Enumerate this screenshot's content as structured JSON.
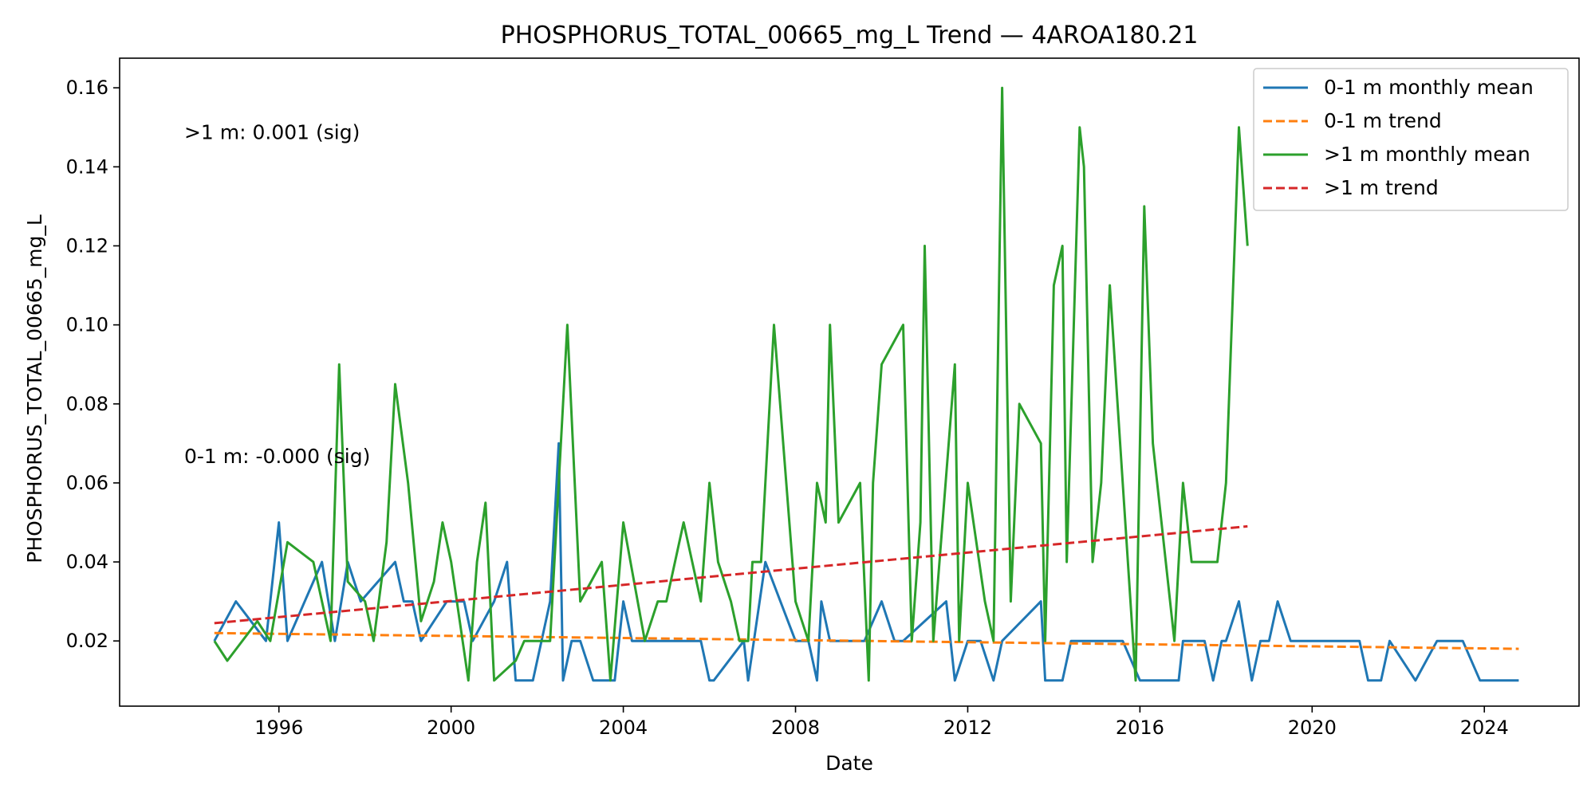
{
  "chart_data": {
    "type": "line",
    "title": "PHOSPHORUS_TOTAL_00665_mg_L Trend — 4AROA180.21",
    "xlabel": "Date",
    "ylabel": "PHOSPHORUS_TOTAL_00665_mg_L",
    "xlim": [
      1992.3,
      2026.2
    ],
    "ylim": [
      0.0035,
      0.1675
    ],
    "x_ticks": [
      1996,
      2000,
      2004,
      2008,
      2012,
      2016,
      2020,
      2024
    ],
    "y_ticks": [
      0.02,
      0.04,
      0.06,
      0.08,
      0.1,
      0.12,
      0.14,
      0.16
    ],
    "y_tick_labels": [
      "0.02",
      "0.04",
      "0.06",
      "0.08",
      "0.10",
      "0.12",
      "0.14",
      "0.16"
    ],
    "grid": false,
    "legend_position": "top-right",
    "annotations": [
      {
        "text": ">1 m: 0.001 (sig)",
        "x": 1993.8,
        "y": 0.147
      },
      {
        "text": "0-1 m: -0.000 (sig)",
        "x": 1993.8,
        "y": 0.065
      }
    ],
    "series": [
      {
        "name": "0-1 m monthly mean",
        "color": "#1f77b4",
        "style": "solid",
        "points": [
          [
            1994.5,
            0.02
          ],
          [
            1995.0,
            0.03
          ],
          [
            1995.7,
            0.02
          ],
          [
            1996.0,
            0.05
          ],
          [
            1996.2,
            0.02
          ],
          [
            1997.0,
            0.04
          ],
          [
            1997.3,
            0.02
          ],
          [
            1997.6,
            0.04
          ],
          [
            1997.9,
            0.03
          ],
          [
            1998.7,
            0.04
          ],
          [
            1998.9,
            0.03
          ],
          [
            1999.1,
            0.03
          ],
          [
            1999.3,
            0.02
          ],
          [
            1999.9,
            0.03
          ],
          [
            2000.3,
            0.03
          ],
          [
            2000.5,
            0.02
          ],
          [
            2001.0,
            0.03
          ],
          [
            2001.3,
            0.04
          ],
          [
            2001.5,
            0.01
          ],
          [
            2001.9,
            0.01
          ],
          [
            2002.3,
            0.03
          ],
          [
            2002.5,
            0.07
          ],
          [
            2002.6,
            0.01
          ],
          [
            2002.8,
            0.02
          ],
          [
            2003.0,
            0.02
          ],
          [
            2003.3,
            0.01
          ],
          [
            2003.8,
            0.01
          ],
          [
            2004.0,
            0.03
          ],
          [
            2004.2,
            0.02
          ],
          [
            2005.0,
            0.02
          ],
          [
            2005.2,
            0.02
          ],
          [
            2005.5,
            0.02
          ],
          [
            2005.8,
            0.02
          ],
          [
            2006.0,
            0.01
          ],
          [
            2006.1,
            0.01
          ],
          [
            2006.8,
            0.02
          ],
          [
            2006.9,
            0.01
          ],
          [
            2007.3,
            0.04
          ],
          [
            2008.0,
            0.02
          ],
          [
            2008.3,
            0.02
          ],
          [
            2008.5,
            0.01
          ],
          [
            2008.6,
            0.03
          ],
          [
            2008.8,
            0.02
          ],
          [
            2009.0,
            0.02
          ],
          [
            2009.6,
            0.02
          ],
          [
            2010.0,
            0.03
          ],
          [
            2010.3,
            0.02
          ],
          [
            2010.5,
            0.02
          ],
          [
            2011.5,
            0.03
          ],
          [
            2011.7,
            0.01
          ],
          [
            2012.0,
            0.02
          ],
          [
            2012.3,
            0.02
          ],
          [
            2012.6,
            0.01
          ],
          [
            2012.8,
            0.02
          ],
          [
            2013.7,
            0.03
          ],
          [
            2013.8,
            0.01
          ],
          [
            2014.2,
            0.01
          ],
          [
            2014.4,
            0.02
          ],
          [
            2014.8,
            0.02
          ],
          [
            2015.0,
            0.02
          ],
          [
            2015.4,
            0.02
          ],
          [
            2015.6,
            0.02
          ],
          [
            2016.0,
            0.01
          ],
          [
            2016.3,
            0.01
          ],
          [
            2016.9,
            0.01
          ],
          [
            2017.0,
            0.02
          ],
          [
            2017.5,
            0.02
          ],
          [
            2017.7,
            0.01
          ],
          [
            2017.9,
            0.02
          ],
          [
            2018.0,
            0.02
          ],
          [
            2018.3,
            0.03
          ],
          [
            2018.6,
            0.01
          ],
          [
            2018.8,
            0.02
          ],
          [
            2019.0,
            0.02
          ],
          [
            2019.2,
            0.03
          ],
          [
            2019.5,
            0.02
          ],
          [
            2019.8,
            0.02
          ],
          [
            2020.1,
            0.02
          ],
          [
            2020.3,
            0.02
          ],
          [
            2020.6,
            0.02
          ],
          [
            2021.1,
            0.02
          ],
          [
            2021.3,
            0.01
          ],
          [
            2021.6,
            0.01
          ],
          [
            2021.8,
            0.02
          ],
          [
            2022.4,
            0.01
          ],
          [
            2022.9,
            0.02
          ],
          [
            2023.5,
            0.02
          ],
          [
            2023.9,
            0.01
          ],
          [
            2024.4,
            0.01
          ],
          [
            2024.8,
            0.01
          ]
        ]
      },
      {
        "name": "0-1 m trend",
        "color": "#ff7f0e",
        "style": "dashed",
        "points": [
          [
            1994.5,
            0.022
          ],
          [
            2024.8,
            0.018
          ]
        ]
      },
      {
        "name": ">1 m monthly mean",
        "color": "#2ca02c",
        "style": "solid",
        "points": [
          [
            1994.5,
            0.02
          ],
          [
            1994.8,
            0.015
          ],
          [
            1995.5,
            0.025
          ],
          [
            1995.8,
            0.02
          ],
          [
            1996.2,
            0.045
          ],
          [
            1996.8,
            0.04
          ],
          [
            1997.2,
            0.02
          ],
          [
            1997.4,
            0.09
          ],
          [
            1997.6,
            0.035
          ],
          [
            1998.0,
            0.03
          ],
          [
            1998.2,
            0.02
          ],
          [
            1998.5,
            0.045
          ],
          [
            1998.7,
            0.085
          ],
          [
            1999.0,
            0.06
          ],
          [
            1999.3,
            0.025
          ],
          [
            1999.6,
            0.035
          ],
          [
            1999.8,
            0.05
          ],
          [
            2000.0,
            0.04
          ],
          [
            2000.4,
            0.01
          ],
          [
            2000.6,
            0.04
          ],
          [
            2000.8,
            0.055
          ],
          [
            2001.0,
            0.01
          ],
          [
            2001.5,
            0.015
          ],
          [
            2001.7,
            0.02
          ],
          [
            2002.0,
            0.02
          ],
          [
            2002.3,
            0.02
          ],
          [
            2002.6,
            0.08
          ],
          [
            2002.7,
            0.1
          ],
          [
            2003.0,
            0.03
          ],
          [
            2003.5,
            0.04
          ],
          [
            2003.7,
            0.01
          ],
          [
            2004.0,
            0.05
          ],
          [
            2004.5,
            0.02
          ],
          [
            2004.8,
            0.03
          ],
          [
            2005.0,
            0.03
          ],
          [
            2005.4,
            0.05
          ],
          [
            2005.6,
            0.04
          ],
          [
            2005.8,
            0.03
          ],
          [
            2006.0,
            0.06
          ],
          [
            2006.2,
            0.04
          ],
          [
            2006.5,
            0.03
          ],
          [
            2006.7,
            0.02
          ],
          [
            2006.9,
            0.02
          ],
          [
            2007.0,
            0.04
          ],
          [
            2007.2,
            0.04
          ],
          [
            2007.5,
            0.1
          ],
          [
            2008.0,
            0.03
          ],
          [
            2008.3,
            0.02
          ],
          [
            2008.5,
            0.06
          ],
          [
            2008.7,
            0.05
          ],
          [
            2008.8,
            0.1
          ],
          [
            2009.0,
            0.05
          ],
          [
            2009.5,
            0.06
          ],
          [
            2009.7,
            0.01
          ],
          [
            2009.8,
            0.06
          ],
          [
            2010.0,
            0.09
          ],
          [
            2010.5,
            0.1
          ],
          [
            2010.7,
            0.02
          ],
          [
            2010.9,
            0.05
          ],
          [
            2011.0,
            0.12
          ],
          [
            2011.2,
            0.02
          ],
          [
            2011.7,
            0.09
          ],
          [
            2011.8,
            0.02
          ],
          [
            2012.0,
            0.06
          ],
          [
            2012.4,
            0.03
          ],
          [
            2012.6,
            0.02
          ],
          [
            2012.8,
            0.16
          ],
          [
            2013.0,
            0.03
          ],
          [
            2013.2,
            0.08
          ],
          [
            2013.7,
            0.07
          ],
          [
            2013.8,
            0.02
          ],
          [
            2014.0,
            0.11
          ],
          [
            2014.2,
            0.12
          ],
          [
            2014.3,
            0.04
          ],
          [
            2014.6,
            0.15
          ],
          [
            2014.7,
            0.14
          ],
          [
            2014.9,
            0.04
          ],
          [
            2015.1,
            0.06
          ],
          [
            2015.3,
            0.11
          ],
          [
            2015.9,
            0.01
          ],
          [
            2016.1,
            0.13
          ],
          [
            2016.3,
            0.07
          ],
          [
            2016.8,
            0.02
          ],
          [
            2017.0,
            0.06
          ],
          [
            2017.2,
            0.04
          ],
          [
            2017.8,
            0.04
          ],
          [
            2018.0,
            0.06
          ],
          [
            2018.3,
            0.15
          ],
          [
            2018.5,
            0.12
          ]
        ]
      },
      {
        "name": ">1 m trend",
        "color": "#d62728",
        "style": "dashed",
        "points": [
          [
            1994.5,
            0.0245
          ],
          [
            2018.5,
            0.049
          ]
        ]
      }
    ]
  }
}
